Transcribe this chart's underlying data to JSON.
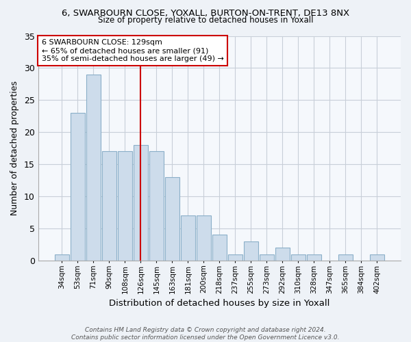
{
  "title": "6, SWARBOURN CLOSE, YOXALL, BURTON-ON-TRENT, DE13 8NX",
  "subtitle": "Size of property relative to detached houses in Yoxall",
  "xlabel": "Distribution of detached houses by size in Yoxall",
  "ylabel": "Number of detached properties",
  "bar_color": "#cddceb",
  "bar_edge_color": "#8aafc8",
  "categories": [
    "34sqm",
    "53sqm",
    "71sqm",
    "90sqm",
    "108sqm",
    "126sqm",
    "145sqm",
    "163sqm",
    "181sqm",
    "200sqm",
    "218sqm",
    "237sqm",
    "255sqm",
    "273sqm",
    "292sqm",
    "310sqm",
    "328sqm",
    "347sqm",
    "365sqm",
    "384sqm",
    "402sqm"
  ],
  "values": [
    1,
    23,
    29,
    17,
    17,
    18,
    17,
    13,
    7,
    7,
    4,
    1,
    3,
    1,
    2,
    1,
    1,
    0,
    1,
    0,
    1
  ],
  "vline_pos": 5,
  "vline_color": "#cc0000",
  "annotation_text": "6 SWARBOURN CLOSE: 129sqm\n← 65% of detached houses are smaller (91)\n35% of semi-detached houses are larger (49) →",
  "annotation_box_color": "#ffffff",
  "annotation_box_edge": "#cc0000",
  "ylim": [
    0,
    35
  ],
  "yticks": [
    0,
    5,
    10,
    15,
    20,
    25,
    30,
    35
  ],
  "footer": "Contains HM Land Registry data © Crown copyright and database right 2024.\nContains public sector information licensed under the Open Government Licence v3.0.",
  "bg_color": "#eef2f7",
  "plot_bg_color": "#f5f8fc",
  "grid_color": "#c8cfd8"
}
